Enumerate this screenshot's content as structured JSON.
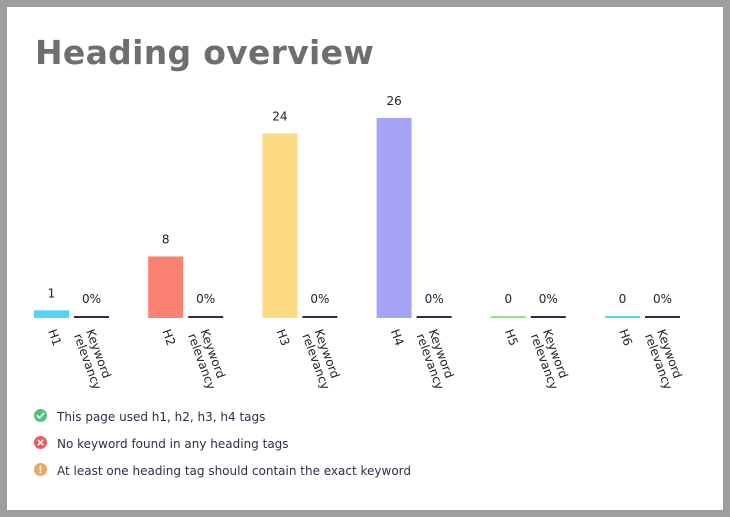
{
  "title": "Heading overview",
  "chart_data": {
    "type": "bar",
    "categories": [
      "H1",
      "H2",
      "H3",
      "H4",
      "H5",
      "H6"
    ],
    "series": [
      {
        "values": [
          1,
          8,
          24,
          26,
          0,
          0
        ],
        "labels": [
          "1",
          "8",
          "24",
          "26",
          "0",
          "0"
        ],
        "colors": [
          "#56d4f7",
          "#fb8273",
          "#fdda84",
          "#a4a3f5",
          "#8ae67c",
          "#56d4f7"
        ]
      },
      {
        "values": [
          0,
          0,
          0,
          0,
          0,
          0
        ],
        "labels": [
          "0%",
          "0%",
          "0%",
          "0%",
          "0%",
          "0%"
        ],
        "color": "#2b2f45"
      }
    ],
    "tick_labels": [
      "H1",
      "Keyword relevancy",
      "H2",
      "Keyword relevancy",
      "H3",
      "Keyword relevancy",
      "H4",
      "Keyword relevancy",
      "H5",
      "Keyword relevancy",
      "H6",
      "Keyword relevancy"
    ],
    "ylim": [
      0,
      26
    ],
    "grid": false,
    "legend": "none"
  },
  "notes": [
    {
      "text": "This page used h1, h2, h3, h4 tags",
      "status": "success",
      "color": "#4fc37a",
      "icon": "check-icon"
    },
    {
      "text": "No keyword found in any heading tags",
      "status": "error",
      "color": "#ea5b5b",
      "icon": "cross-icon"
    },
    {
      "text": "At least one heading tag should contain the exact keyword",
      "status": "warning",
      "color": "#f2a35e",
      "icon": "exclamation-icon"
    }
  ]
}
